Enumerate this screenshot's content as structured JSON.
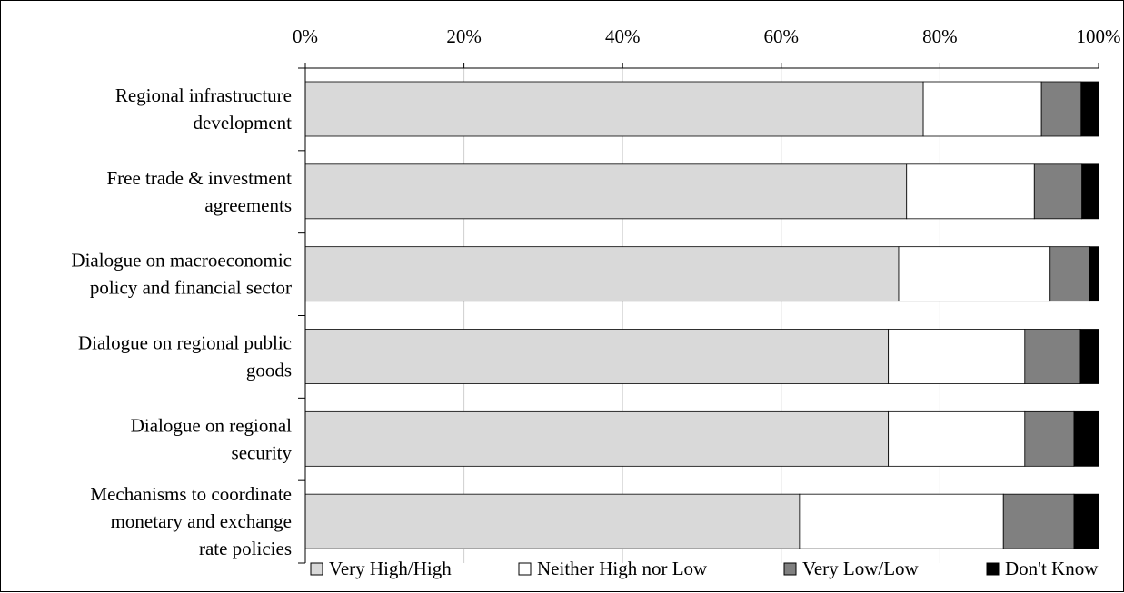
{
  "chart_data": {
    "type": "bar",
    "orientation": "horizontal",
    "stacked": "percent",
    "title": "",
    "xlabel": "",
    "ylabel": "",
    "xlim": [
      0,
      100
    ],
    "x_ticks": [
      "0%",
      "20%",
      "40%",
      "60%",
      "80%",
      "100%"
    ],
    "x_tick_values": [
      0,
      20,
      40,
      60,
      80,
      100
    ],
    "grid": true,
    "axis_position": "top",
    "legend_position": "bottom",
    "categories": [
      [
        "Regional infrastructure",
        "development"
      ],
      [
        "Free trade & investment",
        "agreements"
      ],
      [
        "Dialogue on macroeconomic",
        "policy and financial sector"
      ],
      [
        "Dialogue on regional public",
        "goods"
      ],
      [
        "Dialogue on regional",
        "security"
      ],
      [
        "Mechanisms to coordinate",
        "monetary and exchange",
        "rate policies"
      ]
    ],
    "series": [
      {
        "name": "Very High/High",
        "color": "#d9d9d9",
        "values": [
          77.9,
          75.8,
          74.8,
          73.5,
          73.5,
          62.3
        ]
      },
      {
        "name": "Neither High nor Low",
        "color": "#ffffff",
        "values": [
          14.9,
          16.1,
          19.1,
          17.2,
          17.2,
          25.7
        ]
      },
      {
        "name": "Very Low/Low",
        "color": "#808080",
        "values": [
          5.0,
          6.0,
          5.0,
          7.0,
          6.2,
          8.9
        ]
      },
      {
        "name": "Don't Know",
        "color": "#000000",
        "values": [
          2.2,
          2.1,
          1.1,
          2.3,
          3.1,
          3.1
        ]
      }
    ]
  }
}
